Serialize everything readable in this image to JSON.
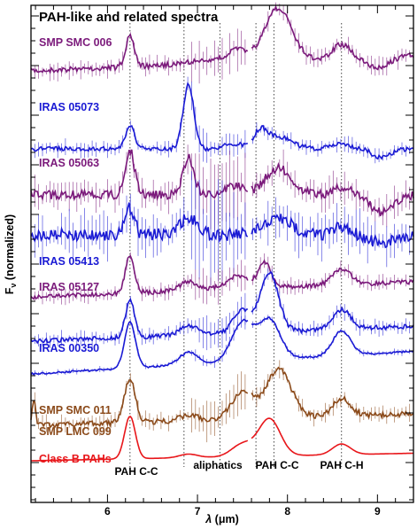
{
  "chart_data": {
    "type": "line",
    "title": "PAH-like and related spectra",
    "xlabel": "λ (μm)",
    "ylabel": "Fν (normalized)",
    "ylabel_main": "F",
    "ylabel_sub": "ν",
    "ylabel_rest": " (normalized)",
    "xlabel_sym": "λ",
    "xlabel_unit": " (μm)",
    "xlim": [
      5.15,
      9.4
    ],
    "xticks": [
      6,
      7,
      8,
      9
    ],
    "xtick_labels": [
      "6",
      "7",
      "8",
      "9"
    ],
    "features": [
      {
        "label": "PAH C-C",
        "x": 6.25
      },
      {
        "label": "aliphatics",
        "x": 6.85
      },
      {
        "label": "",
        "x": 7.25
      },
      {
        "label": "PAH C-C",
        "x": 7.65
      },
      {
        "label": "",
        "x": 7.85
      },
      {
        "label": "PAH C-H",
        "x": 8.6
      }
    ],
    "feature_labels": [
      "PAH C-C",
      "aliphatics",
      "PAH C-C",
      "PAH C-H"
    ],
    "series": [
      {
        "name": "SMP SMC 006",
        "color": "#7b1a7b"
      },
      {
        "name": "IRAS 05073",
        "color": "#1a1ad4"
      },
      {
        "name": "IRAS 05063",
        "color": "#7b1a7b"
      },
      {
        "name": "",
        "color": "#1a1ad4"
      },
      {
        "name": "IRAS 05413",
        "color": "#1a1ad4"
      },
      {
        "name": "IRAS 05127",
        "color": "#7b1a7b"
      },
      {
        "name": "",
        "color": "#1a1ad4"
      },
      {
        "name": "IRAS 00350",
        "color": "#1a1ad4"
      },
      {
        "name": "SMP SMC 011",
        "color": "#8b4a1a"
      },
      {
        "name": "SMP LMC 099",
        "color": "#8b4a1a"
      },
      {
        "name": "Class B PAHs",
        "color": "#e8161a"
      }
    ],
    "legend": "left"
  }
}
